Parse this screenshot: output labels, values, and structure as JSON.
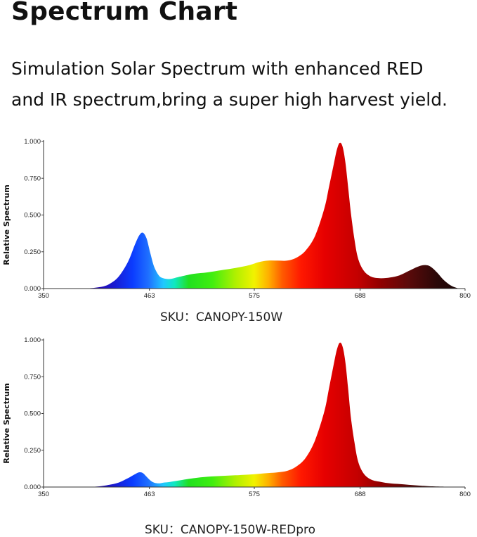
{
  "header": {
    "title": "Spectrum Chart",
    "subtitle_line1": "Simulation Solar Spectrum with enhanced RED",
    "subtitle_line2": "and IR spectrum,bring a super high harvest yield."
  },
  "chart_data": [
    {
      "type": "area",
      "caption": "SKU：CANOPY-150W",
      "ylabel": "Relative Spectrum",
      "xlim": [
        350,
        800
      ],
      "ylim": [
        0,
        1
      ],
      "x_ticks": [
        "350",
        "463",
        "575",
        "688",
        "800"
      ],
      "y_ticks": [
        "0.000",
        "0.250",
        "0.500",
        "0.750",
        "1.000"
      ],
      "grid": false,
      "x": [
        395,
        410,
        420,
        430,
        440,
        447,
        452,
        456,
        460,
        464,
        468,
        473,
        478,
        485,
        495,
        510,
        525,
        540,
        555,
        570,
        580,
        590,
        600,
        610,
        620,
        630,
        640,
        650,
        655,
        660,
        663,
        666,
        669,
        672,
        675,
        678,
        682,
        686,
        692,
        700,
        710,
        720,
        730,
        740,
        750,
        757,
        763,
        770,
        777,
        785,
        793
      ],
      "values": [
        0.0,
        0.01,
        0.03,
        0.08,
        0.18,
        0.29,
        0.36,
        0.38,
        0.34,
        0.24,
        0.15,
        0.09,
        0.07,
        0.065,
        0.08,
        0.1,
        0.11,
        0.125,
        0.14,
        0.16,
        0.18,
        0.19,
        0.19,
        0.19,
        0.21,
        0.26,
        0.36,
        0.55,
        0.7,
        0.85,
        0.94,
        0.99,
        0.97,
        0.87,
        0.7,
        0.52,
        0.33,
        0.2,
        0.12,
        0.08,
        0.07,
        0.075,
        0.09,
        0.12,
        0.15,
        0.16,
        0.15,
        0.11,
        0.06,
        0.02,
        0.0
      ]
    },
    {
      "type": "area",
      "caption": "SKU：CANOPY-150W-REDpro",
      "ylabel": "Relative Spectrum",
      "xlim": [
        350,
        800
      ],
      "ylim": [
        0,
        1
      ],
      "x_ticks": [
        "350",
        "463",
        "575",
        "688",
        "800"
      ],
      "y_ticks": [
        "0.000",
        "0.250",
        "0.500",
        "0.750",
        "1.000"
      ],
      "grid": false,
      "x": [
        395,
        410,
        420,
        430,
        440,
        447,
        452,
        456,
        460,
        464,
        468,
        473,
        478,
        485,
        495,
        510,
        525,
        540,
        555,
        570,
        580,
        590,
        600,
        610,
        620,
        630,
        640,
        650,
        655,
        660,
        663,
        666,
        669,
        672,
        675,
        678,
        682,
        686,
        692,
        700,
        710,
        720,
        730,
        740,
        750,
        760,
        775,
        790
      ],
      "values": [
        0.0,
        0.005,
        0.015,
        0.03,
        0.06,
        0.085,
        0.1,
        0.095,
        0.07,
        0.045,
        0.03,
        0.025,
        0.03,
        0.035,
        0.045,
        0.06,
        0.07,
        0.075,
        0.08,
        0.085,
        0.09,
        0.095,
        0.1,
        0.11,
        0.14,
        0.2,
        0.32,
        0.52,
        0.68,
        0.84,
        0.93,
        0.98,
        0.96,
        0.86,
        0.68,
        0.48,
        0.3,
        0.17,
        0.09,
        0.05,
        0.035,
        0.025,
        0.02,
        0.015,
        0.01,
        0.006,
        0.003,
        0.0
      ]
    }
  ]
}
